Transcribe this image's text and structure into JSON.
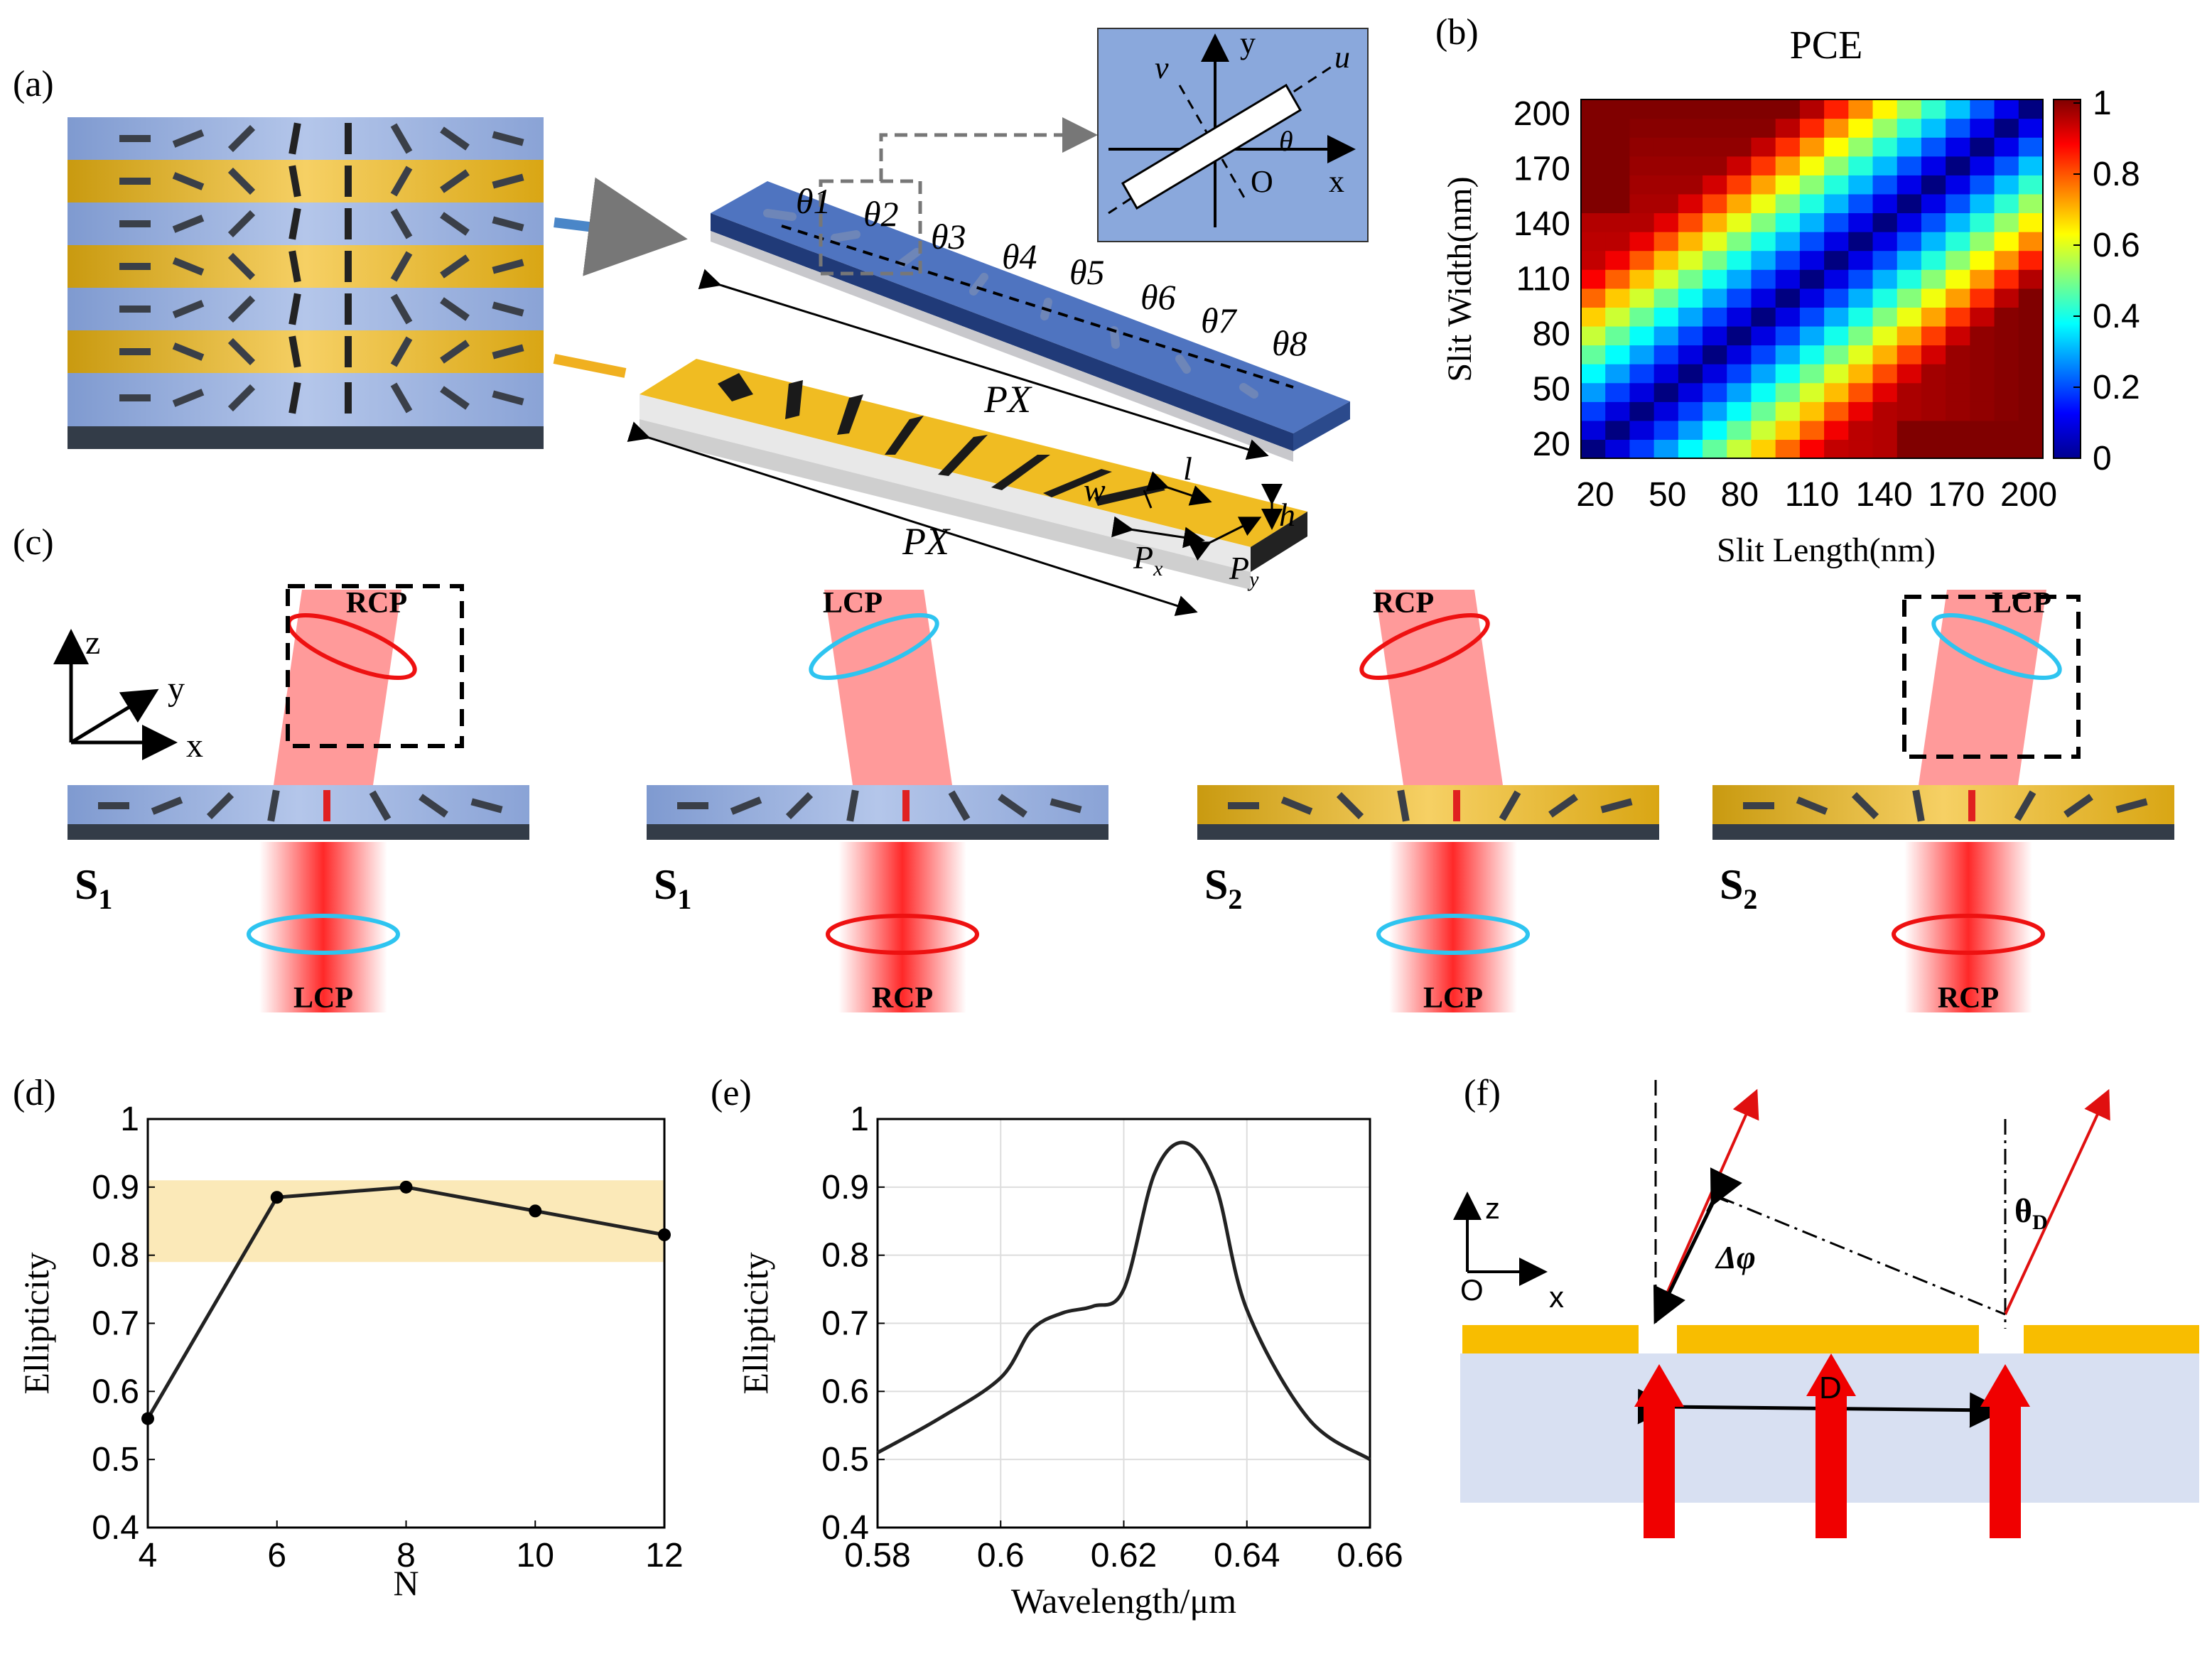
{
  "panels": {
    "a": "(a)",
    "b": "(b)",
    "c": "(c)",
    "d": "(d)",
    "e": "(e)",
    "f": "(f)"
  },
  "panel_a": {
    "angle_labels": [
      "θ1",
      "θ2",
      "θ3",
      "θ4",
      "θ5",
      "θ6",
      "θ7",
      "θ8"
    ],
    "px_label": "PX",
    "inset": {
      "x": "x",
      "y": "y",
      "u": "u",
      "v": "v",
      "o": "O",
      "theta": "θ"
    },
    "dims": {
      "w": "w",
      "l": "l",
      "h": "h",
      "px": "P",
      "px_sub": "x",
      "py": "P",
      "py_sub": "y"
    }
  },
  "panel_c": {
    "axes": {
      "x": "x",
      "y": "y",
      "z": "z"
    },
    "columns": [
      {
        "top": "RCP",
        "bottom": "LCP",
        "sample": "S",
        "sample_sub": "1"
      },
      {
        "top": "LCP",
        "bottom": "RCP",
        "sample": "S",
        "sample_sub": "1"
      },
      {
        "top": "RCP",
        "bottom": "LCP",
        "sample": "S",
        "sample_sub": "2"
      },
      {
        "top": "LCP",
        "bottom": "RCP",
        "sample": "S",
        "sample_sub": "2"
      }
    ]
  },
  "panel_f": {
    "z": "z",
    "x": "x",
    "o": "O",
    "dphi": "Δφ",
    "theta": "θ",
    "theta_sub": "D",
    "D": "D"
  },
  "colors": {
    "gold": "#f5b800",
    "blue_substrate": "#8fa8d8",
    "light_blue": "#dce4f4",
    "red": "#ee1111",
    "cyan": "#2ec4f0",
    "band": "#fbe9b8"
  },
  "chart_data": [
    {
      "type": "heatmap",
      "title": "PCE",
      "xlabel": "Slit Length(nm)",
      "ylabel": "Slit Width(nm)",
      "xticks": [
        "20",
        "50",
        "80",
        "110",
        "140",
        "170",
        "200"
      ],
      "yticks": [
        "20",
        "50",
        "80",
        "110",
        "140",
        "170",
        "200"
      ],
      "xlim": [
        20,
        200
      ],
      "ylim": [
        20,
        200
      ],
      "colorbar_ticks": [
        "0",
        "0.2",
        "0.4",
        "0.6",
        "0.8",
        "1"
      ],
      "colorbar_range": [
        0,
        1
      ],
      "grid_size": 19,
      "description_values": "PCE high (~1) where |length - width| is large; minimum near diagonal"
    },
    {
      "type": "line",
      "xlabel": "N",
      "ylabel": "Ellipticity",
      "x": [
        4,
        6,
        8,
        10,
        12
      ],
      "y": [
        0.56,
        0.885,
        0.9,
        0.865,
        0.83
      ],
      "xlim": [
        4,
        12
      ],
      "ylim": [
        0.4,
        1.0
      ],
      "xticks": [
        "4",
        "6",
        "8",
        "10",
        "12"
      ],
      "yticks": [
        "0.4",
        "0.5",
        "0.6",
        "0.7",
        "0.8",
        "0.9",
        "1"
      ],
      "band": [
        0.79,
        0.91
      ]
    },
    {
      "type": "line",
      "xlabel": "Wavelength/μm",
      "ylabel": "Ellipticity",
      "x": [
        0.58,
        0.59,
        0.6,
        0.605,
        0.61,
        0.615,
        0.62,
        0.625,
        0.63,
        0.635,
        0.64,
        0.65,
        0.66
      ],
      "y": [
        0.51,
        0.56,
        0.62,
        0.69,
        0.715,
        0.725,
        0.75,
        0.92,
        0.965,
        0.9,
        0.72,
        0.56,
        0.5
      ],
      "xlim": [
        0.58,
        0.66
      ],
      "ylim": [
        0.4,
        1.0
      ],
      "xticks": [
        "0.58",
        "0.6",
        "0.62",
        "0.64",
        "0.66"
      ],
      "yticks": [
        "0.4",
        "0.5",
        "0.6",
        "0.7",
        "0.8",
        "0.9",
        "1"
      ]
    }
  ]
}
